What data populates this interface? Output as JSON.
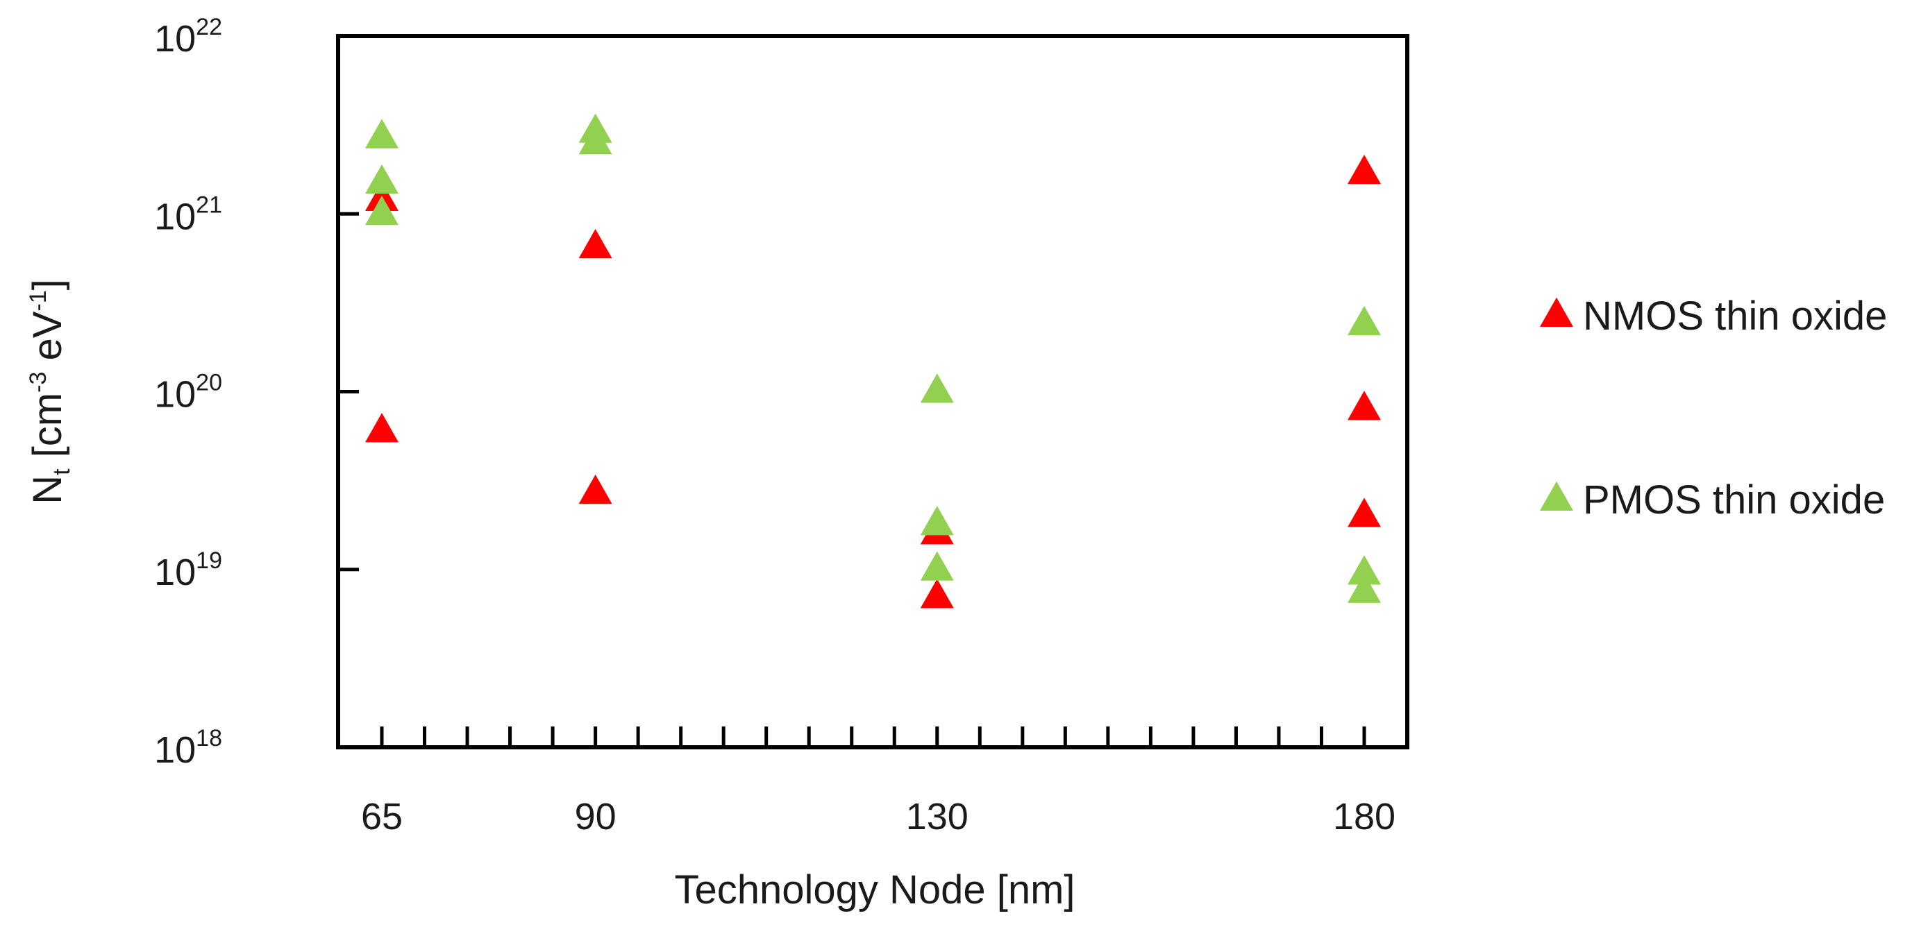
{
  "chart_data": {
    "type": "scatter",
    "title": "",
    "xlabel": "Technology Node  [nm]",
    "ylabel": {
      "base": "N",
      "sub": "t",
      "units_prefix": " [cm",
      "exp1": "-3",
      "units_mid": " eV",
      "exp2": "-1",
      "units_suffix": "]"
    },
    "x_scale": "linear",
    "y_scale": "log",
    "xlim": [
      60,
      185
    ],
    "ylim": [
      1e+18,
      1e+22
    ],
    "x_ticks": [
      65,
      90,
      130,
      180
    ],
    "x_tick_labels": [
      "65",
      "90",
      "130",
      "180"
    ],
    "y_ticks": [
      {
        "value": 1e+18,
        "base": "10",
        "exp": "18"
      },
      {
        "value": 1e+19,
        "base": "10",
        "exp": "19"
      },
      {
        "value": 1e+20,
        "base": "10",
        "exp": "20"
      },
      {
        "value": 1e+21,
        "base": "10",
        "exp": "21"
      },
      {
        "value": 1e+22,
        "base": "10",
        "exp": "22"
      }
    ],
    "x_minor_ticks": [
      65,
      70,
      75,
      80,
      85,
      90,
      95,
      100,
      105,
      110,
      115,
      120,
      125,
      130,
      135,
      140,
      145,
      150,
      155,
      160,
      165,
      170,
      175,
      180
    ],
    "grid": false,
    "legend_position": "right",
    "series": [
      {
        "name": "NMOS thin oxide",
        "color": "#ff0000",
        "marker": "triangle",
        "points": [
          {
            "x": 65,
            "y": 1.2e+21
          },
          {
            "x": 65,
            "y": 6e+19
          },
          {
            "x": 90,
            "y": 6.5e+20
          },
          {
            "x": 90,
            "y": 2.7e+19
          },
          {
            "x": 130,
            "y": 1.6e+19
          },
          {
            "x": 130,
            "y": 7e+18
          },
          {
            "x": 180,
            "y": 1.7e+21
          },
          {
            "x": 180,
            "y": 8e+19
          },
          {
            "x": 180,
            "y": 2e+19
          }
        ]
      },
      {
        "name": "PMOS thin oxide",
        "color": "#92d050",
        "marker": "triangle",
        "points": [
          {
            "x": 65,
            "y": 2.7e+21
          },
          {
            "x": 65,
            "y": 1.5e+21
          },
          {
            "x": 65,
            "y": 1e+21
          },
          {
            "x": 90,
            "y": 2.9e+21
          },
          {
            "x": 90,
            "y": 2.5e+21
          },
          {
            "x": 130,
            "y": 1e+20
          },
          {
            "x": 130,
            "y": 1.8e+19
          },
          {
            "x": 130,
            "y": 1e+19
          },
          {
            "x": 180,
            "y": 2.4e+20
          },
          {
            "x": 180,
            "y": 9.5e+18
          },
          {
            "x": 180,
            "y": 7.5e+18
          }
        ]
      }
    ]
  }
}
